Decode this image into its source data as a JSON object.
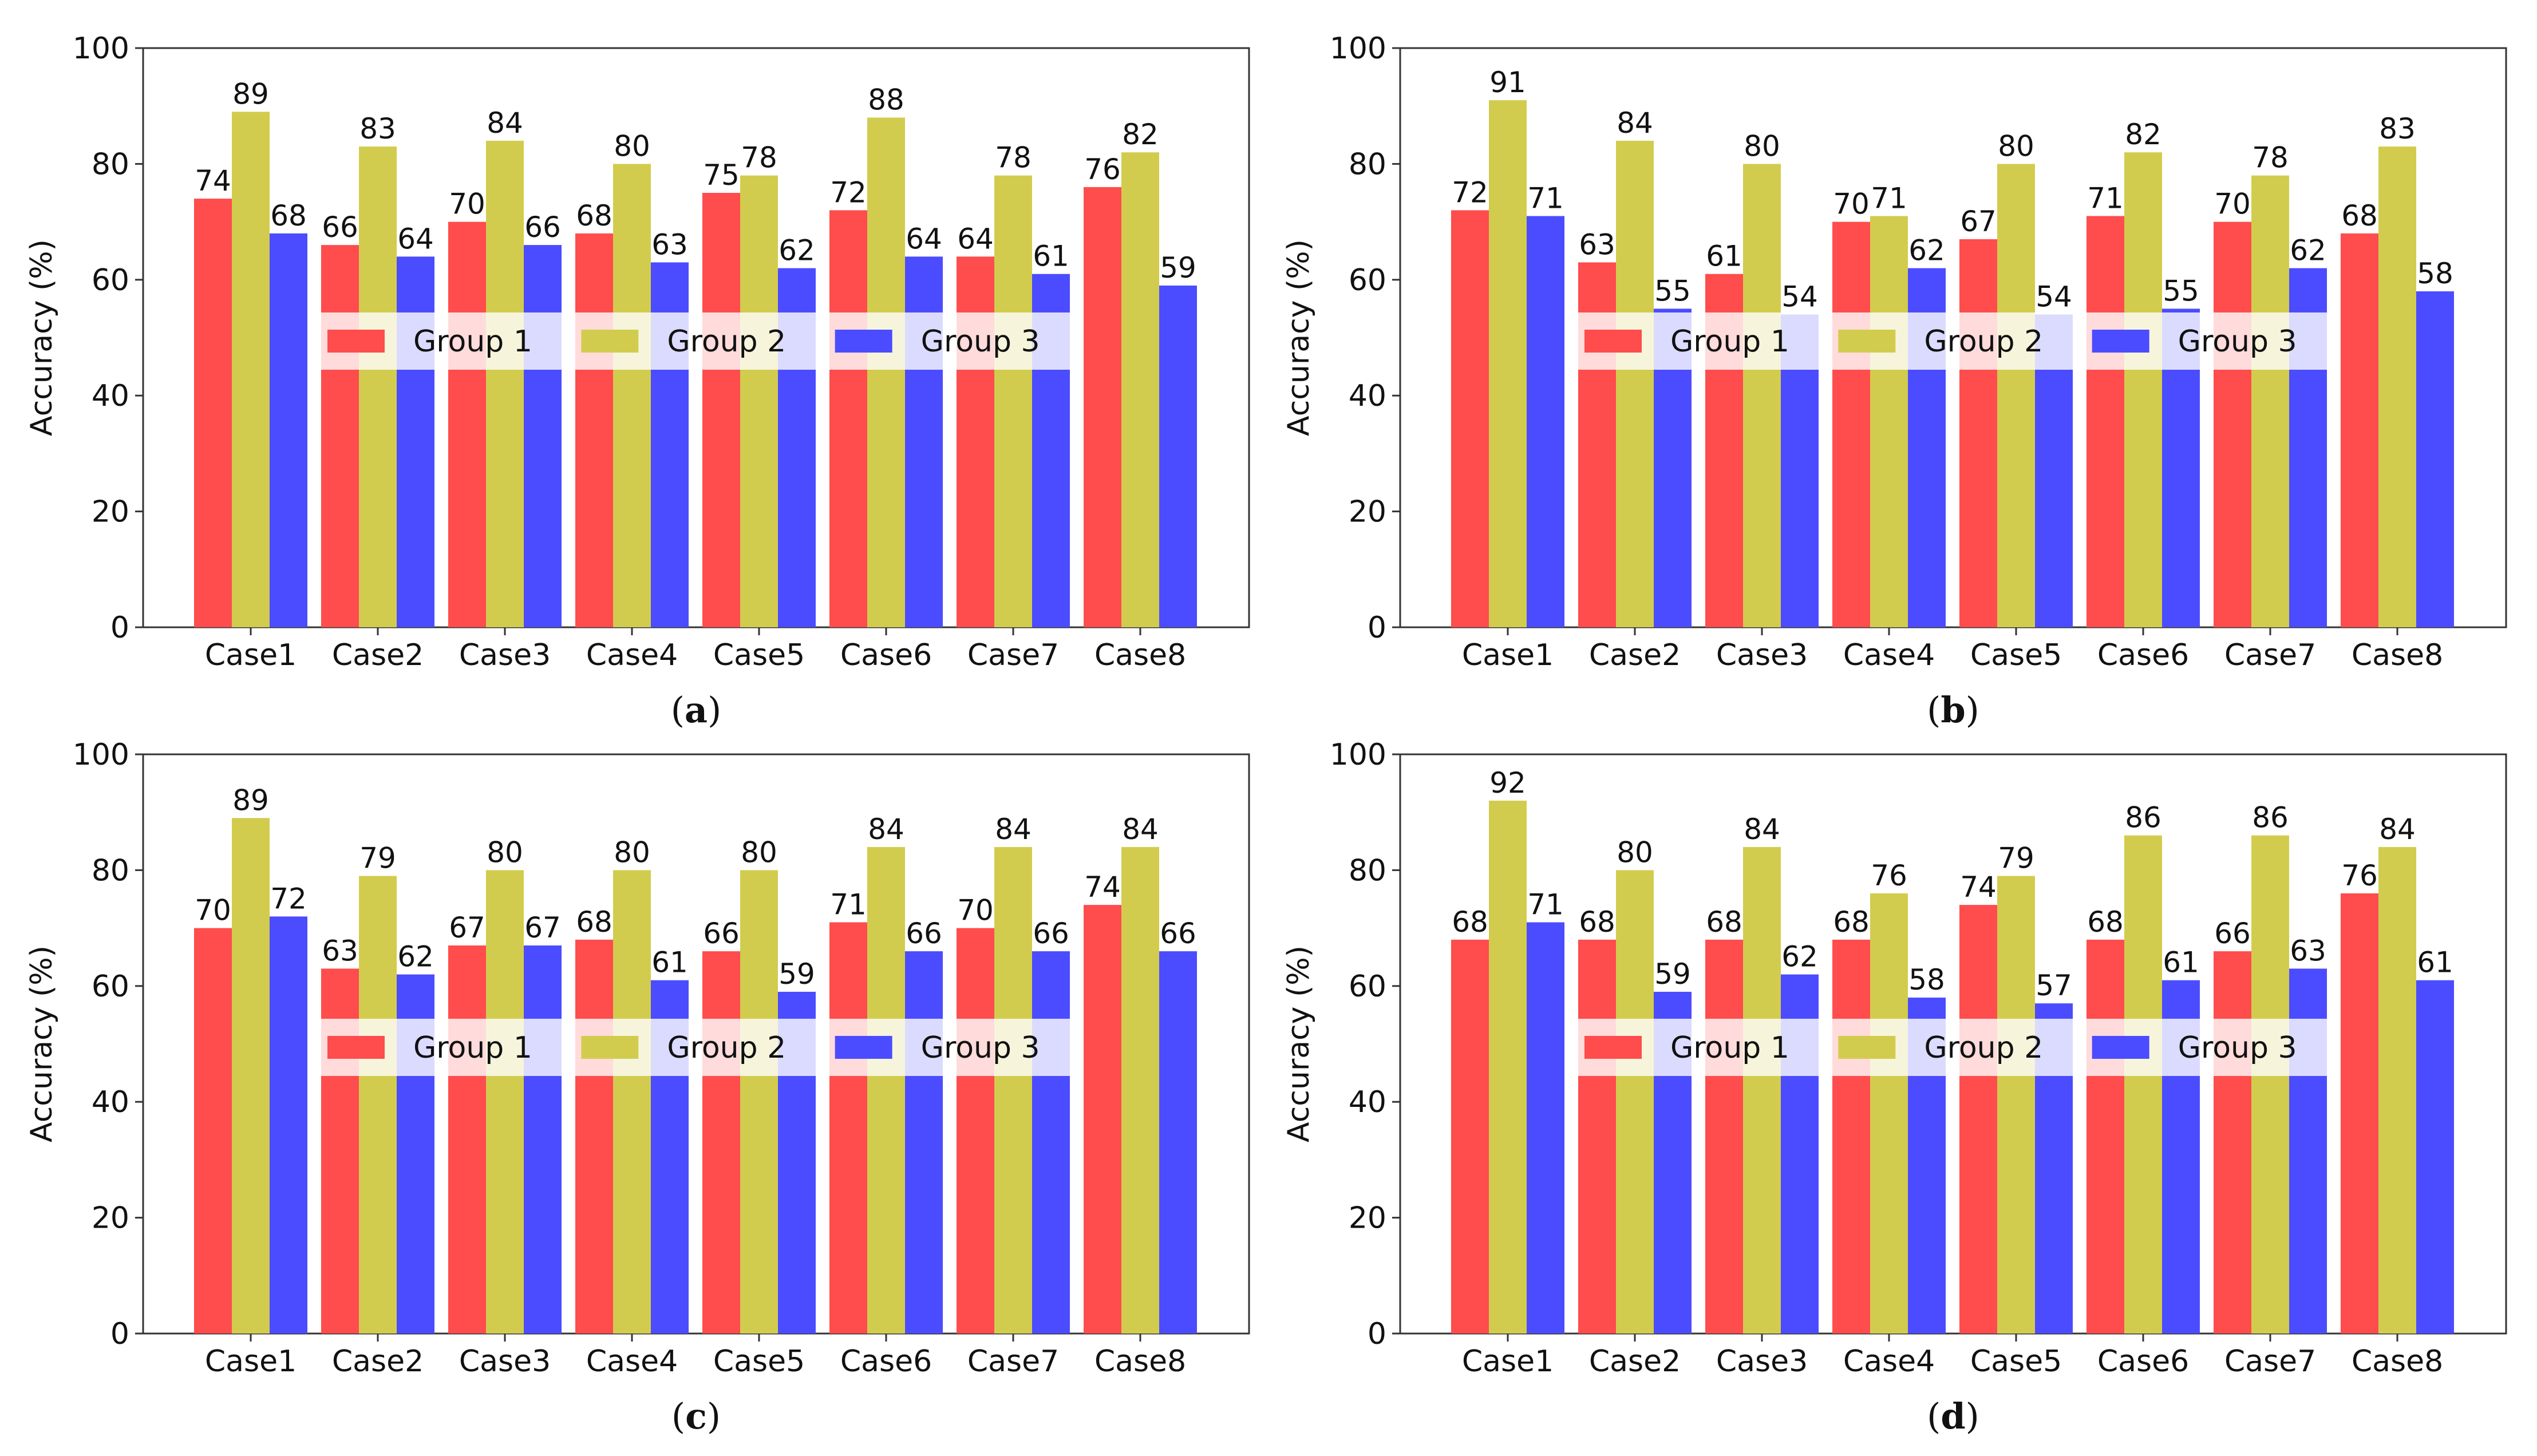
{
  "colors": {
    "group1": "#ff4c4c",
    "group2": "#d2cc4e",
    "group3": "#4b4cff"
  },
  "chart_data": [
    {
      "type": "bar",
      "caption_letter": "a",
      "ylabel": "Accuracy (%)",
      "ylim": [
        0,
        100
      ],
      "yticks": [
        "0",
        "20",
        "40",
        "60",
        "80",
        "100"
      ],
      "categories": [
        "Case1",
        "Case2",
        "Case3",
        "Case4",
        "Case5",
        "Case6",
        "Case7",
        "Case8"
      ],
      "legend_position": "center",
      "grid": false,
      "series": [
        {
          "name": "Group 1",
          "values": [
            74,
            66,
            70,
            68,
            75,
            72,
            64,
            76
          ]
        },
        {
          "name": "Group 2",
          "values": [
            89,
            83,
            84,
            80,
            78,
            88,
            78,
            82
          ]
        },
        {
          "name": "Group 3",
          "values": [
            68,
            64,
            66,
            63,
            62,
            64,
            61,
            59
          ]
        }
      ]
    },
    {
      "type": "bar",
      "caption_letter": "b",
      "ylabel": "Accuracy (%)",
      "ylim": [
        0,
        100
      ],
      "yticks": [
        "0",
        "20",
        "40",
        "60",
        "80",
        "100"
      ],
      "categories": [
        "Case1",
        "Case2",
        "Case3",
        "Case4",
        "Case5",
        "Case6",
        "Case7",
        "Case8"
      ],
      "legend_position": "center",
      "grid": false,
      "series": [
        {
          "name": "Group 1",
          "values": [
            72,
            63,
            61,
            70,
            67,
            71,
            70,
            68
          ]
        },
        {
          "name": "Group 2",
          "values": [
            91,
            84,
            80,
            71,
            80,
            82,
            78,
            83
          ]
        },
        {
          "name": "Group 3",
          "values": [
            71,
            55,
            54,
            62,
            54,
            55,
            62,
            58
          ]
        }
      ]
    },
    {
      "type": "bar",
      "caption_letter": "c",
      "ylabel": "Accuracy (%)",
      "ylim": [
        0,
        100
      ],
      "yticks": [
        "0",
        "20",
        "40",
        "60",
        "80",
        "100"
      ],
      "categories": [
        "Case1",
        "Case2",
        "Case3",
        "Case4",
        "Case5",
        "Case6",
        "Case7",
        "Case8"
      ],
      "legend_position": "center",
      "grid": false,
      "series": [
        {
          "name": "Group 1",
          "values": [
            70,
            63,
            67,
            68,
            66,
            71,
            70,
            74
          ]
        },
        {
          "name": "Group 2",
          "values": [
            89,
            79,
            80,
            80,
            80,
            84,
            84,
            84
          ]
        },
        {
          "name": "Group 3",
          "values": [
            72,
            62,
            67,
            61,
            59,
            66,
            66,
            66
          ]
        }
      ]
    },
    {
      "type": "bar",
      "caption_letter": "d",
      "ylabel": "Accuracy (%)",
      "ylim": [
        0,
        100
      ],
      "yticks": [
        "0",
        "20",
        "40",
        "60",
        "80",
        "100"
      ],
      "categories": [
        "Case1",
        "Case2",
        "Case3",
        "Case4",
        "Case5",
        "Case6",
        "Case7",
        "Case8"
      ],
      "legend_position": "center",
      "grid": false,
      "series": [
        {
          "name": "Group 1",
          "values": [
            68,
            68,
            68,
            68,
            74,
            68,
            66,
            76
          ]
        },
        {
          "name": "Group 2",
          "values": [
            92,
            80,
            84,
            76,
            79,
            86,
            86,
            84
          ]
        },
        {
          "name": "Group 3",
          "values": [
            71,
            59,
            62,
            58,
            57,
            61,
            63,
            61
          ]
        }
      ]
    }
  ]
}
